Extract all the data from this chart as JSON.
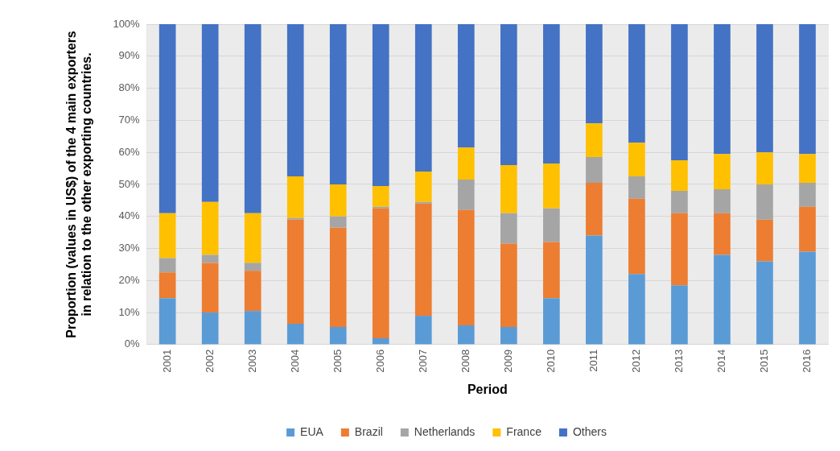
{
  "chart_data": {
    "type": "bar",
    "stacked": true,
    "xlabel": "Period",
    "ylabel": "Proportion (values in US$) of the 4 main exporters in relation to the other exporting countries.",
    "categories": [
      "2001",
      "2002",
      "2003",
      "2004",
      "2005",
      "2006",
      "2007",
      "2008",
      "2009",
      "2010",
      "2011",
      "2012",
      "2013",
      "2014",
      "2015",
      "2016"
    ],
    "series": [
      {
        "name": "EUA",
        "color": "#5b9bd5",
        "values": [
          14.5,
          10,
          10.5,
          6.5,
          5.5,
          2,
          9,
          6,
          5.5,
          14.5,
          34,
          22,
          18.5,
          28,
          26,
          29
        ]
      },
      {
        "name": "Brazil",
        "color": "#ed7d31",
        "values": [
          8,
          15.5,
          12.5,
          32.5,
          31,
          40.5,
          35,
          36,
          26,
          17.5,
          16.5,
          23.5,
          22.5,
          13,
          13,
          14
        ]
      },
      {
        "name": "Netherlands",
        "color": "#a5a5a5",
        "values": [
          4.5,
          2.5,
          2.5,
          0.5,
          3.5,
          0.5,
          0.5,
          9.5,
          9.5,
          10.5,
          8,
          7,
          7,
          7.5,
          11,
          7.5
        ]
      },
      {
        "name": "France",
        "color": "#ffc000",
        "values": [
          14,
          16.5,
          15.5,
          13,
          10,
          6.5,
          9.5,
          10,
          15,
          14,
          10.5,
          10.5,
          9.5,
          11,
          10,
          9
        ]
      },
      {
        "name": "Others",
        "color": "#4472c4",
        "values": [
          59,
          55.5,
          59,
          47.5,
          50,
          50.5,
          46,
          38.5,
          44,
          43.5,
          31,
          37,
          42.5,
          40.5,
          40,
          40.5
        ]
      }
    ],
    "ylim": [
      0,
      100
    ],
    "yticks": [
      {
        "value": 0,
        "label": "0%"
      },
      {
        "value": 10,
        "label": "10%"
      },
      {
        "value": 20,
        "label": "20%"
      },
      {
        "value": 30,
        "label": "30%"
      },
      {
        "value": 40,
        "label": "40%"
      },
      {
        "value": 50,
        "label": "50%"
      },
      {
        "value": 60,
        "label": "60%"
      },
      {
        "value": 70,
        "label": "70%"
      },
      {
        "value": 80,
        "label": "80%"
      },
      {
        "value": 90,
        "label": "90%"
      },
      {
        "value": 100,
        "label": "100%"
      }
    ],
    "grid": "y",
    "legend": "bottom"
  }
}
